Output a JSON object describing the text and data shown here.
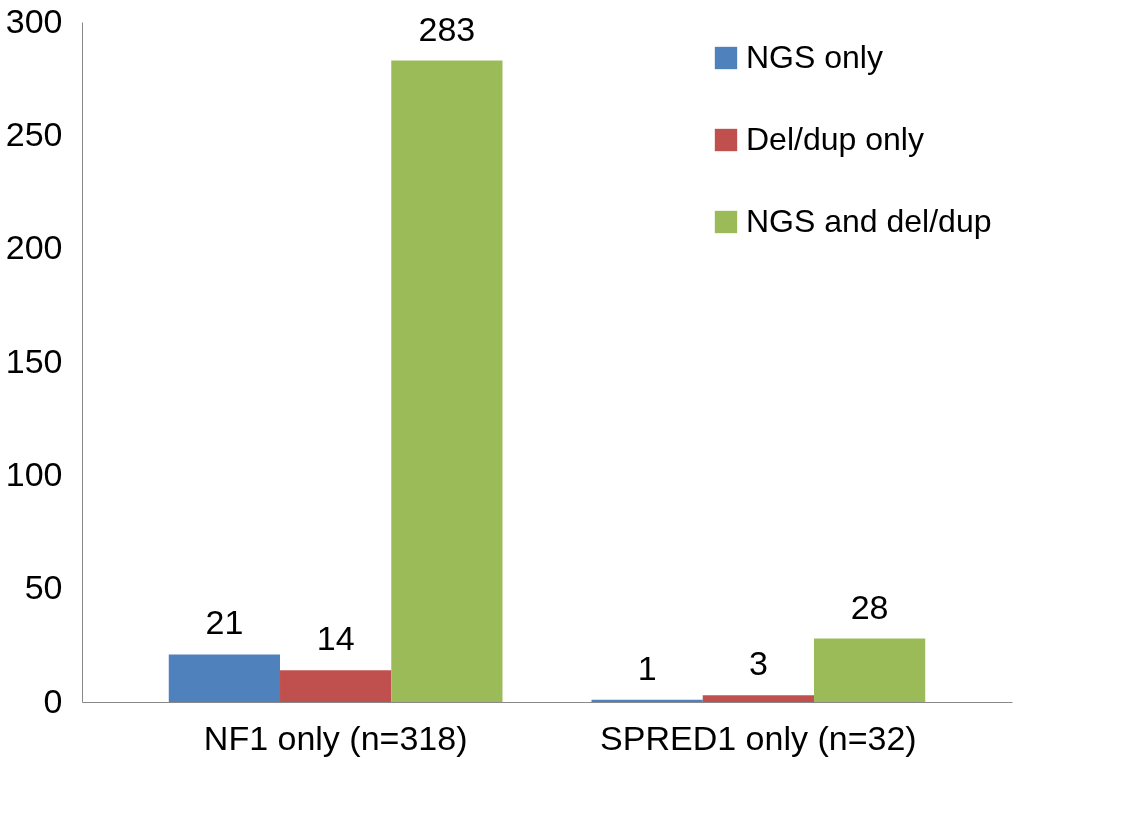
{
  "chart_data": {
    "type": "bar",
    "categories": [
      "NF1 only (n=318)",
      "SPRED1 only (n=32)"
    ],
    "series": [
      {
        "name": "NGS only",
        "color": "#4f81bd",
        "values": [
          21,
          1
        ]
      },
      {
        "name": "Del/dup only",
        "color": "#c0504d",
        "values": [
          14,
          3
        ]
      },
      {
        "name": "NGS and del/dup",
        "color": "#9bbb59",
        "values": [
          283,
          28
        ]
      }
    ],
    "ylim": [
      0,
      300
    ],
    "yticks": [
      0,
      50,
      100,
      150,
      200,
      250,
      300
    ],
    "grid": false,
    "legend": "top right",
    "data_labels": true
  }
}
